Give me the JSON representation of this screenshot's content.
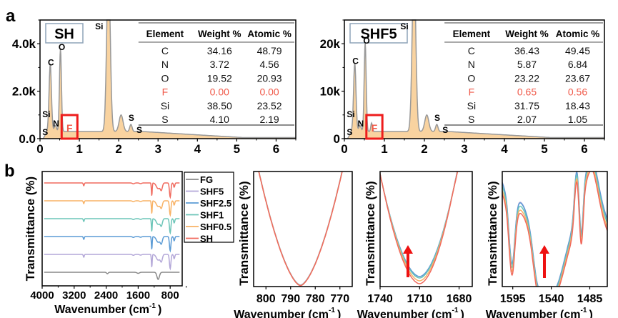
{
  "panel_labels": {
    "a": "a",
    "b": "b"
  },
  "chart_data": [
    {
      "id": "eds-sh",
      "type": "area",
      "title": "SH",
      "xlabel": "",
      "ylabel": "",
      "xlim": [
        0,
        6.5
      ],
      "ylim": [
        0,
        5000
      ],
      "xticks": [
        "0",
        "1",
        "2",
        "3",
        "4",
        "5",
        "6"
      ],
      "yticks": [
        "0.0",
        "2.0k",
        "4.0k"
      ],
      "ytick_values": [
        0,
        2000,
        4000
      ],
      "fill_color": "#f9d3a0",
      "line_color": "#999999",
      "peaks": [
        {
          "label": "S",
          "x": 0.15,
          "y": 300
        },
        {
          "label": "Si",
          "x": 0.1,
          "y": 900
        },
        {
          "label": "C",
          "x": 0.26,
          "y": 2850
        },
        {
          "label": "N",
          "x": 0.38,
          "y": 500
        },
        {
          "label": "O",
          "x": 0.52,
          "y": 3500
        },
        {
          "label": "F",
          "x": 0.68,
          "y": 0
        },
        {
          "label": "Si",
          "x": 1.74,
          "y": 5000
        },
        {
          "label": "S",
          "x": 2.31,
          "y": 450
        },
        {
          "label": "S",
          "x": 2.46,
          "y": 150
        }
      ],
      "highlight_box": {
        "label": "F",
        "x_range": [
          0.55,
          0.95
        ],
        "color": "#ee1c1c"
      },
      "table": {
        "headers": [
          "Element",
          "Weight %",
          "Atomic %"
        ],
        "rows": [
          {
            "element": "C",
            "weight": "34.16",
            "atomic": "48.79",
            "highlight": false
          },
          {
            "element": "N",
            "weight": "3.72",
            "atomic": "4.56",
            "highlight": false
          },
          {
            "element": "O",
            "weight": "19.52",
            "atomic": "20.93",
            "highlight": false
          },
          {
            "element": "F",
            "weight": "0.00",
            "atomic": "0.00",
            "highlight": true
          },
          {
            "element": "Si",
            "weight": "38.50",
            "atomic": "23.52",
            "highlight": false
          },
          {
            "element": "S",
            "weight": "4.10",
            "atomic": "2.19",
            "highlight": false
          }
        ]
      }
    },
    {
      "id": "eds-shf5",
      "type": "area",
      "title": "SHF5",
      "xlabel": "",
      "ylabel": "",
      "xlim": [
        0,
        6.5
      ],
      "ylim": [
        0,
        25000
      ],
      "xticks": [
        "0",
        "1",
        "2",
        "3",
        "4",
        "5",
        "6"
      ],
      "yticks": [
        "0",
        "10k",
        "20k"
      ],
      "ytick_values": [
        0,
        10000,
        20000
      ],
      "fill_color": "#f9d3a0",
      "line_color": "#999999",
      "peaks": [
        {
          "label": "S",
          "x": 0.15,
          "y": 1500
        },
        {
          "label": "Si",
          "x": 0.1,
          "y": 4500
        },
        {
          "label": "C",
          "x": 0.26,
          "y": 14500
        },
        {
          "label": "N",
          "x": 0.38,
          "y": 3500
        },
        {
          "label": "O",
          "x": 0.52,
          "y": 18800
        },
        {
          "label": "F",
          "x": 0.68,
          "y": 1800
        },
        {
          "label": "Si",
          "x": 1.74,
          "y": 25000
        },
        {
          "label": "S",
          "x": 2.31,
          "y": 1200
        },
        {
          "label": "S",
          "x": 2.46,
          "y": 500
        }
      ],
      "highlight_box": {
        "label": "F",
        "x_range": [
          0.55,
          0.95
        ],
        "color": "#ee1c1c"
      },
      "table": {
        "headers": [
          "Element",
          "Weight %",
          "Atomic %"
        ],
        "rows": [
          {
            "element": "C",
            "weight": "36.43",
            "atomic": "49.45",
            "highlight": false
          },
          {
            "element": "N",
            "weight": "5.87",
            "atomic": "6.84",
            "highlight": false
          },
          {
            "element": "O",
            "weight": "23.22",
            "atomic": "23.67",
            "highlight": false
          },
          {
            "element": "F",
            "weight": "0.65",
            "atomic": "0.56",
            "highlight": true
          },
          {
            "element": "Si",
            "weight": "31.75",
            "atomic": "18.43",
            "highlight": false
          },
          {
            "element": "S",
            "weight": "2.07",
            "atomic": "1.05",
            "highlight": false
          }
        ]
      }
    },
    {
      "id": "ftir-full",
      "type": "line",
      "title": "",
      "xlabel": "Wavenumber (cm⁻¹)",
      "ylabel": "Transmittance (%)",
      "xlim": [
        4000,
        500
      ],
      "xticks": [
        "4000",
        "3200",
        "2400",
        "1600",
        "800"
      ],
      "xtick_values": [
        4000,
        3200,
        2400,
        1600,
        800
      ],
      "legend_position": "right",
      "series": [
        {
          "name": "FG",
          "color": "#888888",
          "offset": 0
        },
        {
          "name": "SHF5",
          "color": "#b3a7d8",
          "offset": 1
        },
        {
          "name": "SHF2.5",
          "color": "#5b9bd5",
          "offset": 2
        },
        {
          "name": "SHF1",
          "color": "#6cc5b8",
          "offset": 3
        },
        {
          "name": "SHF0.5",
          "color": "#f8b265",
          "offset": 4
        },
        {
          "name": "SH",
          "color": "#f06a5e",
          "offset": 5
        }
      ]
    },
    {
      "id": "ftir-786",
      "type": "line",
      "xlabel": "Wavenumber (cm⁻¹)",
      "ylabel": "Transmittance (%)",
      "xlim": [
        805,
        765
      ],
      "xticks": [
        "800",
        "790",
        "780",
        "770"
      ],
      "xtick_values": [
        800,
        790,
        780,
        770
      ],
      "minimum_at": 786
    },
    {
      "id": "ftir-1710",
      "type": "line",
      "xlabel": "Wavenumber (cm⁻¹)",
      "ylabel": "Transmittance (%)",
      "xlim": [
        1740,
        1670
      ],
      "xticks": [
        "1740",
        "1710",
        "1680"
      ],
      "xtick_values": [
        1740,
        1710,
        1680
      ],
      "minimum_at": 1710,
      "annotation": "up-arrow"
    },
    {
      "id": "ftir-1540",
      "type": "line",
      "xlabel": "Wavenumber (cm⁻¹)",
      "ylabel": "Transmittance (%)",
      "xlim": [
        1610,
        1460
      ],
      "xticks": [
        "1595",
        "1540",
        "1485"
      ],
      "xtick_values": [
        1595,
        1540,
        1485
      ],
      "minimum_at": 1538,
      "annotation": "up-arrow"
    }
  ]
}
